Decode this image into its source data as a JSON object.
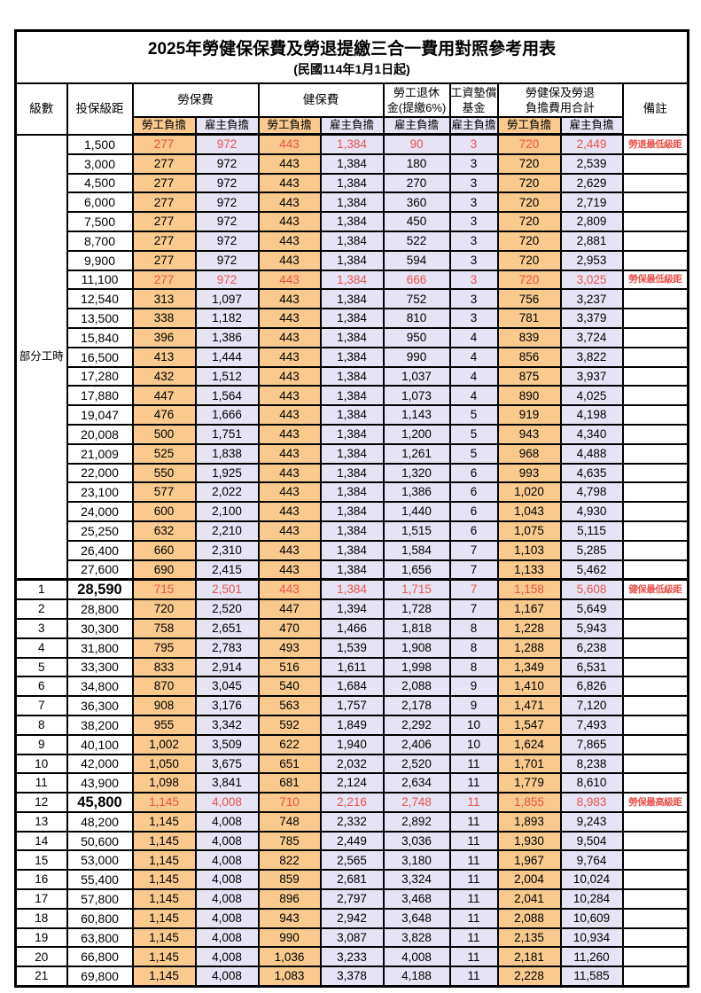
{
  "title": "2025年勞健保保費及勞退提繳三合一費用對照參考用表",
  "subtitle": "(民國114年1月1日起)",
  "header": {
    "level": "級數",
    "bracket": "投保級距",
    "labor_insurance": "勞保費",
    "health_insurance": "健保費",
    "pension_line1": "勞工退休",
    "pension_line2": "金(提繳6%)",
    "wage_fund_line1": "工資墊償",
    "wage_fund_line2": "基金",
    "total_line1": "勞健保及勞退",
    "total_line2": "負擔費用合計",
    "remark": "備註",
    "employee": "勞工負擔",
    "employer": "雇主負擔"
  },
  "part_time_label": "部分工時",
  "colors": {
    "orange": "#F9C98E",
    "lavender": "#E5E3F4",
    "red": "#E9544D"
  },
  "rows": [
    {
      "level": "",
      "bracket": "1,500",
      "li_emp": "277",
      "li_er": "972",
      "hi_emp": "443",
      "hi_er": "1,384",
      "pension": "90",
      "fund": "3",
      "sum_emp": "720",
      "sum_er": "2,449",
      "remark": "勞退最低級距",
      "red": true
    },
    {
      "level": "",
      "bracket": "3,000",
      "li_emp": "277",
      "li_er": "972",
      "hi_emp": "443",
      "hi_er": "1,384",
      "pension": "180",
      "fund": "3",
      "sum_emp": "720",
      "sum_er": "2,539"
    },
    {
      "level": "",
      "bracket": "4,500",
      "li_emp": "277",
      "li_er": "972",
      "hi_emp": "443",
      "hi_er": "1,384",
      "pension": "270",
      "fund": "3",
      "sum_emp": "720",
      "sum_er": "2,629"
    },
    {
      "level": "",
      "bracket": "6,000",
      "li_emp": "277",
      "li_er": "972",
      "hi_emp": "443",
      "hi_er": "1,384",
      "pension": "360",
      "fund": "3",
      "sum_emp": "720",
      "sum_er": "2,719"
    },
    {
      "level": "",
      "bracket": "7,500",
      "li_emp": "277",
      "li_er": "972",
      "hi_emp": "443",
      "hi_er": "1,384",
      "pension": "450",
      "fund": "3",
      "sum_emp": "720",
      "sum_er": "2,809"
    },
    {
      "level": "",
      "bracket": "8,700",
      "li_emp": "277",
      "li_er": "972",
      "hi_emp": "443",
      "hi_er": "1,384",
      "pension": "522",
      "fund": "3",
      "sum_emp": "720",
      "sum_er": "2,881"
    },
    {
      "level": "",
      "bracket": "9,900",
      "li_emp": "277",
      "li_er": "972",
      "hi_emp": "443",
      "hi_er": "1,384",
      "pension": "594",
      "fund": "3",
      "sum_emp": "720",
      "sum_er": "2,953"
    },
    {
      "level": "",
      "bracket": "11,100",
      "li_emp": "277",
      "li_er": "972",
      "hi_emp": "443",
      "hi_er": "1,384",
      "pension": "666",
      "fund": "3",
      "sum_emp": "720",
      "sum_er": "3,025",
      "remark": "勞保最低級距",
      "red": true
    },
    {
      "level": "",
      "bracket": "12,540",
      "li_emp": "313",
      "li_er": "1,097",
      "hi_emp": "443",
      "hi_er": "1,384",
      "pension": "752",
      "fund": "3",
      "sum_emp": "756",
      "sum_er": "3,237"
    },
    {
      "level": "",
      "bracket": "13,500",
      "li_emp": "338",
      "li_er": "1,182",
      "hi_emp": "443",
      "hi_er": "1,384",
      "pension": "810",
      "fund": "3",
      "sum_emp": "781",
      "sum_er": "3,379"
    },
    {
      "level": "",
      "bracket": "15,840",
      "li_emp": "396",
      "li_er": "1,386",
      "hi_emp": "443",
      "hi_er": "1,384",
      "pension": "950",
      "fund": "4",
      "sum_emp": "839",
      "sum_er": "3,724"
    },
    {
      "level": "",
      "bracket": "16,500",
      "li_emp": "413",
      "li_er": "1,444",
      "hi_emp": "443",
      "hi_er": "1,384",
      "pension": "990",
      "fund": "4",
      "sum_emp": "856",
      "sum_er": "3,822"
    },
    {
      "level": "",
      "bracket": "17,280",
      "li_emp": "432",
      "li_er": "1,512",
      "hi_emp": "443",
      "hi_er": "1,384",
      "pension": "1,037",
      "fund": "4",
      "sum_emp": "875",
      "sum_er": "3,937"
    },
    {
      "level": "",
      "bracket": "17,880",
      "li_emp": "447",
      "li_er": "1,564",
      "hi_emp": "443",
      "hi_er": "1,384",
      "pension": "1,073",
      "fund": "4",
      "sum_emp": "890",
      "sum_er": "4,025"
    },
    {
      "level": "",
      "bracket": "19,047",
      "li_emp": "476",
      "li_er": "1,666",
      "hi_emp": "443",
      "hi_er": "1,384",
      "pension": "1,143",
      "fund": "5",
      "sum_emp": "919",
      "sum_er": "4,198"
    },
    {
      "level": "",
      "bracket": "20,008",
      "li_emp": "500",
      "li_er": "1,751",
      "hi_emp": "443",
      "hi_er": "1,384",
      "pension": "1,200",
      "fund": "5",
      "sum_emp": "943",
      "sum_er": "4,340"
    },
    {
      "level": "",
      "bracket": "21,009",
      "li_emp": "525",
      "li_er": "1,838",
      "hi_emp": "443",
      "hi_er": "1,384",
      "pension": "1,261",
      "fund": "5",
      "sum_emp": "968",
      "sum_er": "4,488"
    },
    {
      "level": "",
      "bracket": "22,000",
      "li_emp": "550",
      "li_er": "1,925",
      "hi_emp": "443",
      "hi_er": "1,384",
      "pension": "1,320",
      "fund": "6",
      "sum_emp": "993",
      "sum_er": "4,635"
    },
    {
      "level": "",
      "bracket": "23,100",
      "li_emp": "577",
      "li_er": "2,022",
      "hi_emp": "443",
      "hi_er": "1,384",
      "pension": "1,386",
      "fund": "6",
      "sum_emp": "1,020",
      "sum_er": "4,798"
    },
    {
      "level": "",
      "bracket": "24,000",
      "li_emp": "600",
      "li_er": "2,100",
      "hi_emp": "443",
      "hi_er": "1,384",
      "pension": "1,440",
      "fund": "6",
      "sum_emp": "1,043",
      "sum_er": "4,930"
    },
    {
      "level": "",
      "bracket": "25,250",
      "li_emp": "632",
      "li_er": "2,210",
      "hi_emp": "443",
      "hi_er": "1,384",
      "pension": "1,515",
      "fund": "6",
      "sum_emp": "1,075",
      "sum_er": "5,115"
    },
    {
      "level": "",
      "bracket": "26,400",
      "li_emp": "660",
      "li_er": "2,310",
      "hi_emp": "443",
      "hi_er": "1,384",
      "pension": "1,584",
      "fund": "7",
      "sum_emp": "1,103",
      "sum_er": "5,285"
    },
    {
      "level": "",
      "bracket": "27,600",
      "li_emp": "690",
      "li_er": "2,415",
      "hi_emp": "443",
      "hi_er": "1,384",
      "pension": "1,656",
      "fund": "7",
      "sum_emp": "1,133",
      "sum_er": "5,462"
    },
    {
      "level": "1",
      "bracket": "28,590",
      "li_emp": "715",
      "li_er": "2,501",
      "hi_emp": "443",
      "hi_er": "1,384",
      "pension": "1,715",
      "fund": "7",
      "sum_emp": "1,158",
      "sum_er": "5,608",
      "remark": "健保最低級距",
      "red": true,
      "bold": true,
      "section": true
    },
    {
      "level": "2",
      "bracket": "28,800",
      "li_emp": "720",
      "li_er": "2,520",
      "hi_emp": "447",
      "hi_er": "1,394",
      "pension": "1,728",
      "fund": "7",
      "sum_emp": "1,167",
      "sum_er": "5,649"
    },
    {
      "level": "3",
      "bracket": "30,300",
      "li_emp": "758",
      "li_er": "2,651",
      "hi_emp": "470",
      "hi_er": "1,466",
      "pension": "1,818",
      "fund": "8",
      "sum_emp": "1,228",
      "sum_er": "5,943"
    },
    {
      "level": "4",
      "bracket": "31,800",
      "li_emp": "795",
      "li_er": "2,783",
      "hi_emp": "493",
      "hi_er": "1,539",
      "pension": "1,908",
      "fund": "8",
      "sum_emp": "1,288",
      "sum_er": "6,238"
    },
    {
      "level": "5",
      "bracket": "33,300",
      "li_emp": "833",
      "li_er": "2,914",
      "hi_emp": "516",
      "hi_er": "1,611",
      "pension": "1,998",
      "fund": "8",
      "sum_emp": "1,349",
      "sum_er": "6,531"
    },
    {
      "level": "6",
      "bracket": "34,800",
      "li_emp": "870",
      "li_er": "3,045",
      "hi_emp": "540",
      "hi_er": "1,684",
      "pension": "2,088",
      "fund": "9",
      "sum_emp": "1,410",
      "sum_er": "6,826"
    },
    {
      "level": "7",
      "bracket": "36,300",
      "li_emp": "908",
      "li_er": "3,176",
      "hi_emp": "563",
      "hi_er": "1,757",
      "pension": "2,178",
      "fund": "9",
      "sum_emp": "1,471",
      "sum_er": "7,120"
    },
    {
      "level": "8",
      "bracket": "38,200",
      "li_emp": "955",
      "li_er": "3,342",
      "hi_emp": "592",
      "hi_er": "1,849",
      "pension": "2,292",
      "fund": "10",
      "sum_emp": "1,547",
      "sum_er": "7,493"
    },
    {
      "level": "9",
      "bracket": "40,100",
      "li_emp": "1,002",
      "li_er": "3,509",
      "hi_emp": "622",
      "hi_er": "1,940",
      "pension": "2,406",
      "fund": "10",
      "sum_emp": "1,624",
      "sum_er": "7,865"
    },
    {
      "level": "10",
      "bracket": "42,000",
      "li_emp": "1,050",
      "li_er": "3,675",
      "hi_emp": "651",
      "hi_er": "2,032",
      "pension": "2,520",
      "fund": "11",
      "sum_emp": "1,701",
      "sum_er": "8,238"
    },
    {
      "level": "11",
      "bracket": "43,900",
      "li_emp": "1,098",
      "li_er": "3,841",
      "hi_emp": "681",
      "hi_er": "2,124",
      "pension": "2,634",
      "fund": "11",
      "sum_emp": "1,779",
      "sum_er": "8,610"
    },
    {
      "level": "12",
      "bracket": "45,800",
      "li_emp": "1,145",
      "li_er": "4,008",
      "hi_emp": "710",
      "hi_er": "2,216",
      "pension": "2,748",
      "fund": "11",
      "sum_emp": "1,855",
      "sum_er": "8,983",
      "remark": "勞保最高級距",
      "red": true,
      "bold": true
    },
    {
      "level": "13",
      "bracket": "48,200",
      "li_emp": "1,145",
      "li_er": "4,008",
      "hi_emp": "748",
      "hi_er": "2,332",
      "pension": "2,892",
      "fund": "11",
      "sum_emp": "1,893",
      "sum_er": "9,243"
    },
    {
      "level": "14",
      "bracket": "50,600",
      "li_emp": "1,145",
      "li_er": "4,008",
      "hi_emp": "785",
      "hi_er": "2,449",
      "pension": "3,036",
      "fund": "11",
      "sum_emp": "1,930",
      "sum_er": "9,504"
    },
    {
      "level": "15",
      "bracket": "53,000",
      "li_emp": "1,145",
      "li_er": "4,008",
      "hi_emp": "822",
      "hi_er": "2,565",
      "pension": "3,180",
      "fund": "11",
      "sum_emp": "1,967",
      "sum_er": "9,764"
    },
    {
      "level": "16",
      "bracket": "55,400",
      "li_emp": "1,145",
      "li_er": "4,008",
      "hi_emp": "859",
      "hi_er": "2,681",
      "pension": "3,324",
      "fund": "11",
      "sum_emp": "2,004",
      "sum_er": "10,024"
    },
    {
      "level": "17",
      "bracket": "57,800",
      "li_emp": "1,145",
      "li_er": "4,008",
      "hi_emp": "896",
      "hi_er": "2,797",
      "pension": "3,468",
      "fund": "11",
      "sum_emp": "2,041",
      "sum_er": "10,284"
    },
    {
      "level": "18",
      "bracket": "60,800",
      "li_emp": "1,145",
      "li_er": "4,008",
      "hi_emp": "943",
      "hi_er": "2,942",
      "pension": "3,648",
      "fund": "11",
      "sum_emp": "2,088",
      "sum_er": "10,609"
    },
    {
      "level": "19",
      "bracket": "63,800",
      "li_emp": "1,145",
      "li_er": "4,008",
      "hi_emp": "990",
      "hi_er": "3,087",
      "pension": "3,828",
      "fund": "11",
      "sum_emp": "2,135",
      "sum_er": "10,934"
    },
    {
      "level": "20",
      "bracket": "66,800",
      "li_emp": "1,145",
      "li_er": "4,008",
      "hi_emp": "1,036",
      "hi_er": "3,233",
      "pension": "4,008",
      "fund": "11",
      "sum_emp": "2,181",
      "sum_er": "11,260"
    },
    {
      "level": "21",
      "bracket": "69,800",
      "li_emp": "1,145",
      "li_er": "4,008",
      "hi_emp": "1,083",
      "hi_er": "3,378",
      "pension": "4,188",
      "fund": "11",
      "sum_emp": "2,228",
      "sum_er": "11,585"
    }
  ]
}
